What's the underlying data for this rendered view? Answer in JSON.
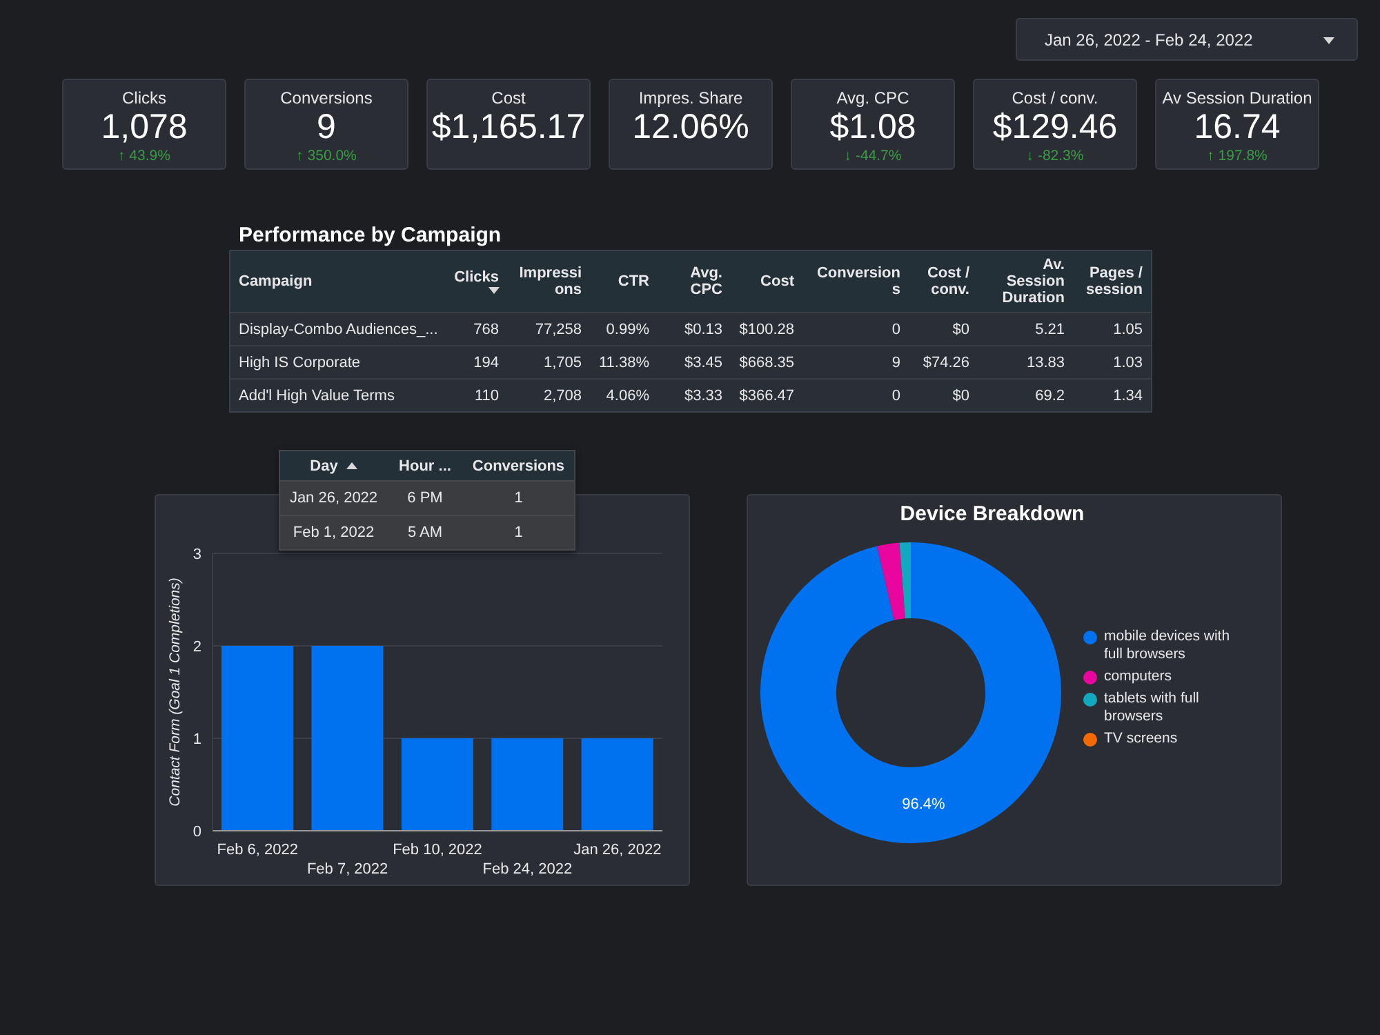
{
  "chart_data": [
    {
      "type": "other",
      "annotations": [
        "Jan 26, 2022 - Feb 24, 2022"
      ]
    },
    {
      "type": "other",
      "title": "Clicks",
      "annotations": [
        "1,078",
        "↑ 43.9%"
      ]
    },
    {
      "type": "other",
      "title": "Conversions",
      "annotations": [
        "9",
        "↑ 350.0%"
      ]
    },
    {
      "type": "other",
      "title": "Cost",
      "annotations": [
        "$1,165.17"
      ]
    },
    {
      "type": "other",
      "title": "Impres. Share",
      "annotations": [
        "12.06%"
      ]
    },
    {
      "type": "other",
      "title": "Avg. CPC",
      "annotations": [
        "$1.08",
        "↓ -44.7%"
      ]
    },
    {
      "type": "other",
      "title": "Cost / conv.",
      "annotations": [
        "$129.46",
        "↓ -82.3%"
      ]
    },
    {
      "type": "other",
      "title": "Av Session Duration",
      "annotations": [
        "16.74",
        "↑ 197.8%"
      ]
    },
    {
      "type": "other",
      "title": "Performance by Campaign",
      "categories": [
        "Campaign",
        "Clicks",
        "Impressions",
        "CTR",
        "Avg. CPC",
        "Cost",
        "Conversions",
        "Cost / conv.",
        "Av. Session Duration",
        "Pages / session"
      ],
      "cell_labels": [
        [
          "Display-Combo Audiences_...",
          "768",
          "77,258",
          "0.99%",
          "$0.13",
          "$100.28",
          "0",
          "$0",
          "5.21",
          "1.05"
        ],
        [
          "High IS Corporate",
          "194",
          "1,705",
          "11.38%",
          "$3.45",
          "$668.35",
          "9",
          "$74.26",
          "13.83",
          "1.03"
        ],
        [
          "Add'l High Value Terms",
          "110",
          "2,708",
          "4.06%",
          "$3.33",
          "$366.47",
          "0",
          "$0",
          "69.2",
          "1.34"
        ]
      ]
    },
    {
      "type": "other",
      "categories": [
        "Day",
        "Hour ...",
        "Conversions"
      ],
      "cell_labels": [
        [
          "Jan 26, 2022",
          "6 PM",
          "1"
        ],
        [
          "Feb 1, 2022",
          "5 AM",
          "1"
        ]
      ]
    },
    {
      "type": "bar",
      "ylabel": "Contact Form (Goal 1 Completions)",
      "categories": [
        "Feb 6, 2022",
        "Feb 7, 2022",
        "Feb 10, 2022",
        "Feb 24, 2022",
        "Jan 26, 2022"
      ],
      "values": [
        2,
        2,
        1,
        1,
        1
      ],
      "color": "#0072ef",
      "ylim": [
        0,
        3
      ],
      "yticks": [
        0,
        1,
        2,
        3
      ],
      "grid": "y"
    },
    {
      "type": "donut",
      "title": "Device Breakdown",
      "categories": [
        "mobile devices with full browsers",
        "computers",
        "tablets with full browsers",
        "TV screens"
      ],
      "values": [
        96.4,
        2.4,
        1.2,
        0
      ],
      "colors": [
        "#0072ef",
        "#e8069e",
        "#12a9be",
        "#f56a00"
      ],
      "value_labels": [
        "96.4%",
        null,
        null,
        null
      ],
      "legend": "right"
    }
  ]
}
